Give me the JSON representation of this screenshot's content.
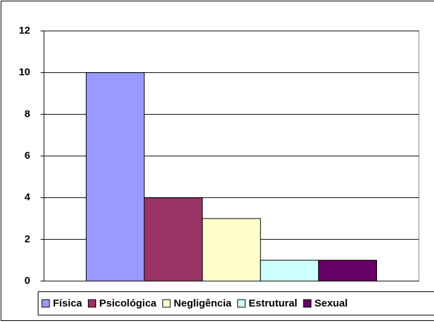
{
  "chart_data": {
    "type": "bar",
    "series": [
      {
        "name": "Física",
        "color": "#9999ff",
        "values": [
          10
        ]
      },
      {
        "name": "Psicológica",
        "color": "#993366",
        "values": [
          4
        ]
      },
      {
        "name": "Negligência",
        "color": "#ffffcc",
        "values": [
          3
        ]
      },
      {
        "name": "Estrutural",
        "color": "#ccffff",
        "values": [
          1
        ]
      },
      {
        "name": "Sexual",
        "color": "#660066",
        "values": [
          1
        ]
      }
    ],
    "ylim": [
      0,
      12
    ],
    "yticks": [
      0,
      2,
      4,
      6,
      8,
      10,
      12
    ],
    "grid": true,
    "legend": "bottom"
  }
}
